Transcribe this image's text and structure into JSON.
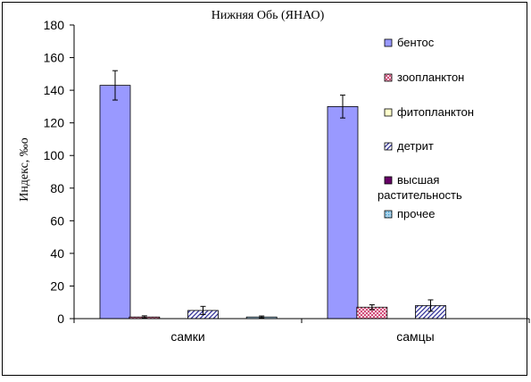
{
  "chart_data": {
    "type": "bar",
    "title": "Нижняя Обь (ЯНАО)",
    "xlabel": "",
    "ylabel": "Индекс, ‰o",
    "ylim": [
      0,
      180
    ],
    "yticks": [
      0,
      20,
      40,
      60,
      80,
      100,
      120,
      140,
      160,
      180
    ],
    "grid": false,
    "legend_position": "right",
    "categories": [
      "самки",
      "самцы"
    ],
    "series": [
      {
        "name": "бентос",
        "values": [
          143,
          130
        ],
        "errors": [
          9,
          7
        ],
        "fill": "solid",
        "color": "#9999ff"
      },
      {
        "name": "зоопланктон",
        "values": [
          1,
          7
        ],
        "errors": [
          0.7,
          1.5
        ],
        "fill": "crosshatch",
        "color": "#cc3366"
      },
      {
        "name": "фитопланктон",
        "values": [
          0,
          0
        ],
        "errors": [
          0,
          0
        ],
        "fill": "solid",
        "color": "#ffffcc"
      },
      {
        "name": "детрит",
        "values": [
          5,
          8
        ],
        "errors": [
          2.5,
          3.5
        ],
        "fill": "diagonal",
        "color": "#333399"
      },
      {
        "name": "высшая растительность",
        "values": [
          0,
          0
        ],
        "errors": [
          0,
          0
        ],
        "fill": "solid",
        "color": "#660066"
      },
      {
        "name": "прочее",
        "values": [
          1,
          0
        ],
        "errors": [
          0.6,
          0
        ],
        "fill": "dots",
        "color": "#3399cc"
      }
    ]
  }
}
